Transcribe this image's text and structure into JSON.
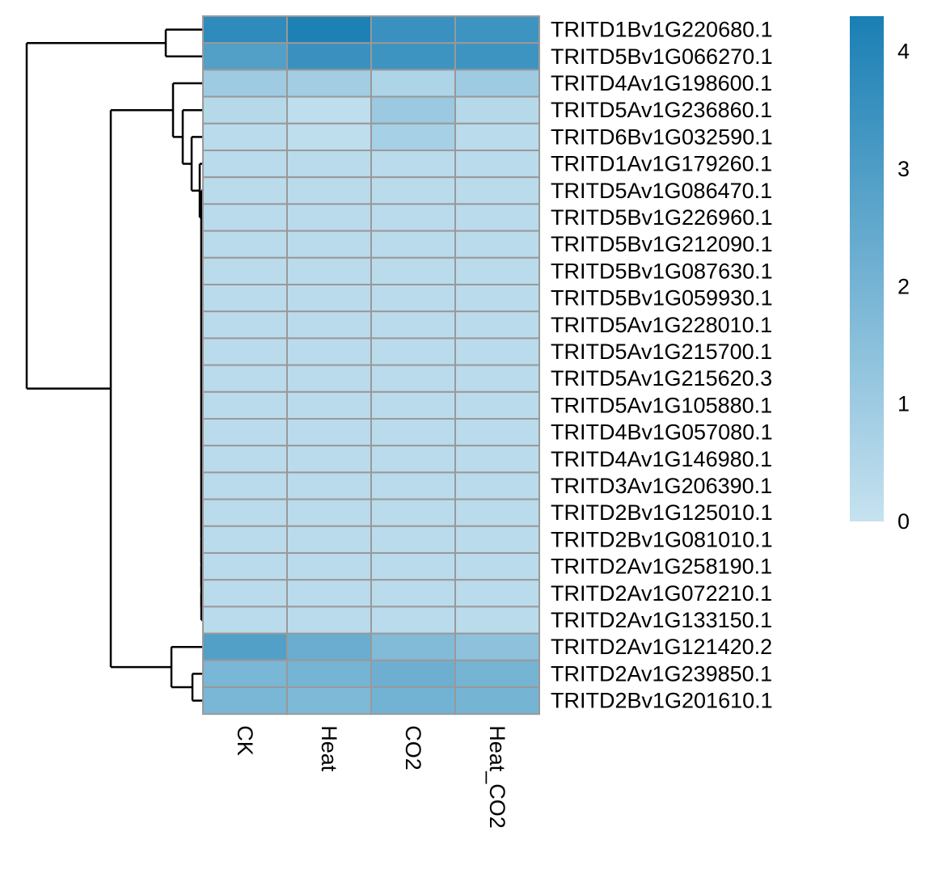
{
  "chart_data": {
    "type": "heatmap",
    "columns": [
      "CK",
      "Heat",
      "CO2",
      "Heat_CO2"
    ],
    "rows": [
      "TRITD1Bv1G220680.1",
      "TRITD5Bv1G066270.1",
      "TRITD4Av1G198600.1",
      "TRITD5Av1G236860.1",
      "TRITD6Bv1G032590.1",
      "TRITD1Av1G179260.1",
      "TRITD5Av1G086470.1",
      "TRITD5Bv1G226960.1",
      "TRITD5Bv1G212090.1",
      "TRITD5Bv1G087630.1",
      "TRITD5Bv1G059930.1",
      "TRITD5Av1G228010.1",
      "TRITD5Av1G215700.1",
      "TRITD5Av1G215620.3",
      "TRITD5Av1G105880.1",
      "TRITD4Bv1G057080.1",
      "TRITD4Av1G146980.1",
      "TRITD3Av1G206390.1",
      "TRITD2Bv1G125010.1",
      "TRITD2Bv1G081010.1",
      "TRITD2Av1G258190.1",
      "TRITD2Av1G072210.1",
      "TRITD2Av1G133150.1",
      "TRITD2Av1G121420.2",
      "TRITD2Av1G239850.1",
      "TRITD2Bv1G201610.1"
    ],
    "values": [
      [
        3.8,
        4.2,
        3.5,
        3.4
      ],
      [
        2.9,
        3.5,
        3.4,
        3.4
      ],
      [
        1.0,
        0.9,
        0.6,
        1.0
      ],
      [
        0.4,
        0.2,
        1.1,
        0.4
      ],
      [
        0.3,
        0.2,
        0.8,
        0.3
      ],
      [
        0.3,
        0.3,
        0.3,
        0.3
      ],
      [
        0.3,
        0.3,
        0.3,
        0.3
      ],
      [
        0.3,
        0.3,
        0.3,
        0.3
      ],
      [
        0.3,
        0.3,
        0.3,
        0.3
      ],
      [
        0.3,
        0.3,
        0.3,
        0.3
      ],
      [
        0.3,
        0.3,
        0.3,
        0.3
      ],
      [
        0.3,
        0.3,
        0.3,
        0.3
      ],
      [
        0.3,
        0.3,
        0.3,
        0.3
      ],
      [
        0.3,
        0.3,
        0.3,
        0.3
      ],
      [
        0.3,
        0.3,
        0.3,
        0.3
      ],
      [
        0.3,
        0.3,
        0.3,
        0.3
      ],
      [
        0.3,
        0.3,
        0.3,
        0.3
      ],
      [
        0.3,
        0.3,
        0.3,
        0.3
      ],
      [
        0.3,
        0.3,
        0.3,
        0.3
      ],
      [
        0.3,
        0.3,
        0.3,
        0.3
      ],
      [
        0.3,
        0.3,
        0.3,
        0.3
      ],
      [
        0.3,
        0.3,
        0.3,
        0.3
      ],
      [
        0.3,
        0.3,
        0.3,
        0.3
      ],
      [
        2.9,
        2.3,
        1.7,
        1.4
      ],
      [
        1.9,
        2.0,
        2.2,
        2.0
      ],
      [
        1.9,
        1.8,
        2.1,
        2.0
      ]
    ],
    "color_scale": {
      "min": 0,
      "max": 4.3,
      "low_color": "#c6e2f0",
      "high_color": "#1a7fb4",
      "ticks": [
        0,
        1,
        2,
        3,
        4
      ]
    },
    "cell_border_color": "#999999",
    "row_dendrogram": "left",
    "grid": true,
    "legend_placement": "right"
  }
}
